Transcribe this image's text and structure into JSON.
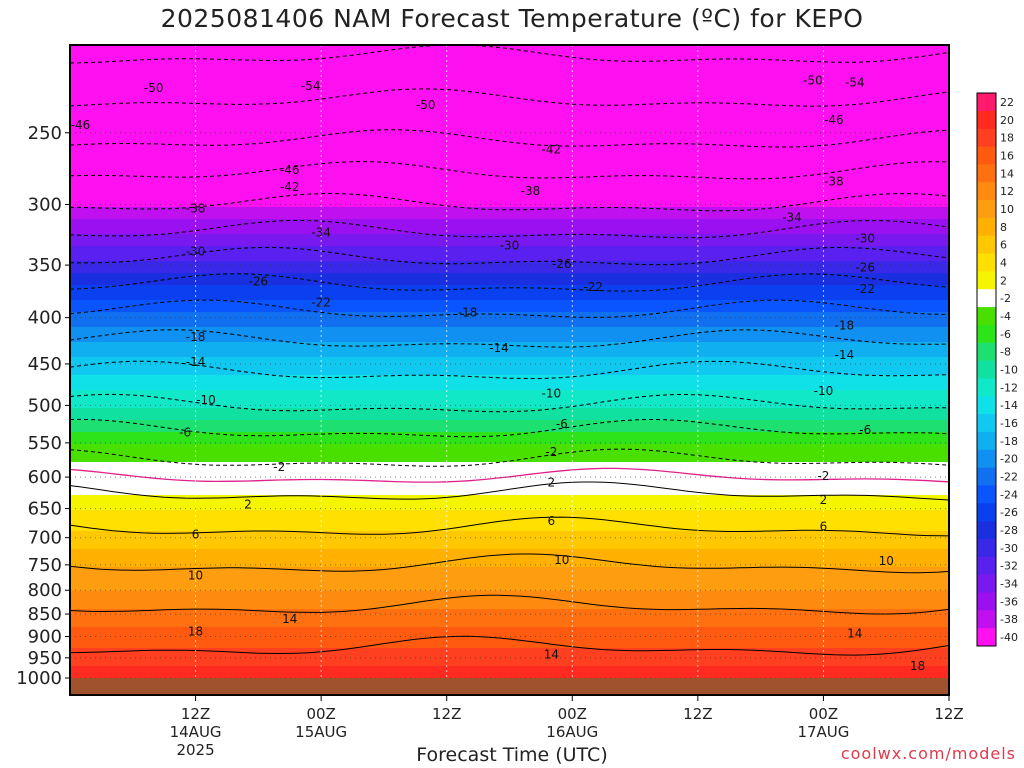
{
  "chart_data": {
    "type": "heatmap",
    "title": "2025081406 NAM Forecast Temperature (ºC) for KEPO",
    "xlabel": "Forecast Time (UTC)",
    "ylabel": "",
    "y_scale": "log",
    "y_reversed": true,
    "ylim": [
      1000,
      200
    ],
    "y_ticks": [
      250,
      300,
      350,
      400,
      450,
      500,
      550,
      600,
      650,
      700,
      750,
      800,
      850,
      900,
      950,
      1000
    ],
    "x_hours_range": [
      6,
      90
    ],
    "x_ticks": [
      {
        "hour": 18,
        "label": "12Z",
        "date": "14AUG",
        "year": "2025"
      },
      {
        "hour": 30,
        "label": "00Z",
        "date": "15AUG",
        "year": ""
      },
      {
        "hour": 42,
        "label": "12Z",
        "date": "",
        "year": ""
      },
      {
        "hour": 54,
        "label": "00Z",
        "date": "16AUG",
        "year": ""
      },
      {
        "hour": 66,
        "label": "12Z",
        "date": "",
        "year": ""
      },
      {
        "hour": 78,
        "label": "00Z",
        "date": "17AUG",
        "year": ""
      },
      {
        "hour": 90,
        "label": "12Z",
        "date": "",
        "year": ""
      }
    ],
    "color_scale": {
      "levels": [
        22,
        20,
        18,
        16,
        14,
        12,
        10,
        8,
        6,
        4,
        2,
        -2,
        -4,
        -6,
        -8,
        -10,
        -12,
        -14,
        -16,
        -18,
        -20,
        -22,
        -24,
        -26,
        -28,
        -30,
        -32,
        -34,
        -36,
        -38,
        -40
      ],
      "colors": [
        "#ff1a6e",
        "#ff2a20",
        "#ff4020",
        "#ff5a10",
        "#ff7010",
        "#ff8a10",
        "#ff9d10",
        "#ffb000",
        "#ffc800",
        "#ffe000",
        "#f5f500",
        "#ffffff",
        "#49e000",
        "#2de41a",
        "#1ee070",
        "#10e0a0",
        "#10e8c8",
        "#10e0e8",
        "#10c8f0",
        "#10b0f0",
        "#1090f0",
        "#1070f0",
        "#0a55ff",
        "#0a40f0",
        "#1a30e0",
        "#3a28e8",
        "#5a20f0",
        "#7a18f0",
        "#9a10f0",
        "#c010f0",
        "#ff10f0"
      ]
    },
    "profile": [
      {
        "p": 1000,
        "t": 22
      },
      {
        "p": 950,
        "t": 19
      },
      {
        "p": 900,
        "t": 17
      },
      {
        "p": 850,
        "t": 15
      },
      {
        "p": 800,
        "t": 12
      },
      {
        "p": 750,
        "t": 10
      },
      {
        "p": 700,
        "t": 7
      },
      {
        "p": 650,
        "t": 4
      },
      {
        "p": 600,
        "t": 0
      },
      {
        "p": 550,
        "t": -4
      },
      {
        "p": 500,
        "t": -10
      },
      {
        "p": 450,
        "t": -15
      },
      {
        "p": 400,
        "t": -21
      },
      {
        "p": 350,
        "t": -29
      },
      {
        "p": 300,
        "t": -38
      },
      {
        "p": 250,
        "t": -47
      },
      {
        "p": 200,
        "t": -55
      }
    ],
    "contour_labels": [
      {
        "h": 14,
        "p": 223,
        "text": "-50"
      },
      {
        "h": 29,
        "p": 222,
        "text": "-54"
      },
      {
        "h": 7,
        "p": 245,
        "text": "-46"
      },
      {
        "h": 40,
        "p": 233,
        "text": "-50"
      },
      {
        "h": 27,
        "p": 275,
        "text": "-46"
      },
      {
        "h": 27,
        "p": 287,
        "text": "-42"
      },
      {
        "h": 52,
        "p": 261,
        "text": "-42"
      },
      {
        "h": 81,
        "p": 220,
        "text": "-54"
      },
      {
        "h": 77,
        "p": 219,
        "text": "-50"
      },
      {
        "h": 79,
        "p": 242,
        "text": "-46"
      },
      {
        "h": 79,
        "p": 283,
        "text": "-38"
      },
      {
        "h": 18,
        "p": 303,
        "text": "-38"
      },
      {
        "h": 50,
        "p": 290,
        "text": "-38"
      },
      {
        "h": 30,
        "p": 322,
        "text": "-34"
      },
      {
        "h": 75,
        "p": 310,
        "text": "-34"
      },
      {
        "h": 18,
        "p": 338,
        "text": "-30"
      },
      {
        "h": 48,
        "p": 333,
        "text": "-30"
      },
      {
        "h": 82,
        "p": 327,
        "text": "-30"
      },
      {
        "h": 24,
        "p": 365,
        "text": "-26"
      },
      {
        "h": 53,
        "p": 349,
        "text": "-26"
      },
      {
        "h": 82,
        "p": 352,
        "text": "-26"
      },
      {
        "h": 30,
        "p": 385,
        "text": "-22"
      },
      {
        "h": 56,
        "p": 370,
        "text": "-22"
      },
      {
        "h": 82,
        "p": 372,
        "text": "-22"
      },
      {
        "h": 18,
        "p": 420,
        "text": "-18"
      },
      {
        "h": 44,
        "p": 395,
        "text": "-18"
      },
      {
        "h": 80,
        "p": 408,
        "text": "-18"
      },
      {
        "h": 18,
        "p": 448,
        "text": "-14"
      },
      {
        "h": 47,
        "p": 432,
        "text": "-14"
      },
      {
        "h": 80,
        "p": 440,
        "text": "-14"
      },
      {
        "h": 19,
        "p": 493,
        "text": "-10"
      },
      {
        "h": 52,
        "p": 485,
        "text": "-10"
      },
      {
        "h": 78,
        "p": 482,
        "text": "-10"
      },
      {
        "h": 17,
        "p": 536,
        "text": "-6"
      },
      {
        "h": 53,
        "p": 524,
        "text": "-6"
      },
      {
        "h": 82,
        "p": 532,
        "text": "-6"
      },
      {
        "h": 26,
        "p": 585,
        "text": "-2"
      },
      {
        "h": 52,
        "p": 563,
        "text": "-2"
      },
      {
        "h": 78,
        "p": 598,
        "text": "-2"
      },
      {
        "h": 52,
        "p": 608,
        "text": "2"
      },
      {
        "h": 23,
        "p": 643,
        "text": "2"
      },
      {
        "h": 78,
        "p": 636,
        "text": "2"
      },
      {
        "h": 18,
        "p": 694,
        "text": "6"
      },
      {
        "h": 52,
        "p": 671,
        "text": "6"
      },
      {
        "h": 78,
        "p": 680,
        "text": "6"
      },
      {
        "h": 18,
        "p": 771,
        "text": "10"
      },
      {
        "h": 53,
        "p": 741,
        "text": "10"
      },
      {
        "h": 84,
        "p": 743,
        "text": "10"
      },
      {
        "h": 27,
        "p": 861,
        "text": "14"
      },
      {
        "h": 52,
        "p": 942,
        "text": "14"
      },
      {
        "h": 81,
        "p": 893,
        "text": "14"
      },
      {
        "h": 18,
        "p": 889,
        "text": "18"
      },
      {
        "h": 87,
        "p": 970,
        "text": "18"
      }
    ],
    "grid": true,
    "legend": "right"
  },
  "credit": "coolwx.com/models"
}
